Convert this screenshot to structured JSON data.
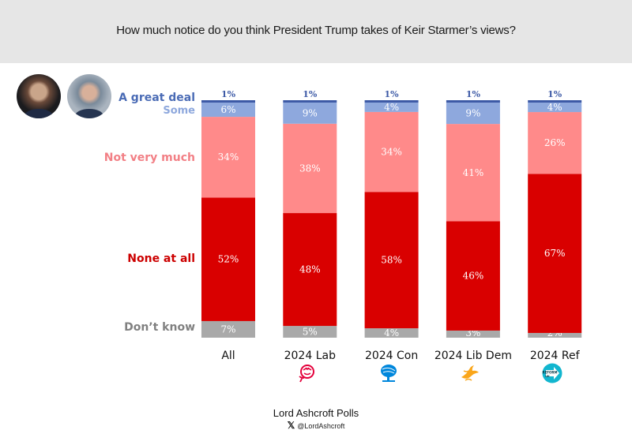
{
  "header": {
    "title": "How much notice do you think President Trump takes of Keir Starmer’s views?"
  },
  "avatars": [
    {
      "name": "Donald Trump photo"
    },
    {
      "name": "Keir Starmer photo"
    }
  ],
  "legend_labels": {
    "great_deal": "A great deal",
    "some": "Some",
    "not_very_much": "Not very much",
    "none_at_all": "None at all",
    "dont_know": "Don’t know"
  },
  "colors": {
    "great_deal": "#3d5aa6",
    "some": "#8ea8dd",
    "not_very_much": "#ff8a8a",
    "none_at_all": "#d90000",
    "dont_know": "#a9a9a9",
    "label_great_deal": "#4a6bb5",
    "label_some": "#8ea8dd",
    "label_not_very_much": "#f27f85",
    "label_none_at_all": "#cc0000",
    "label_dont_know": "#808080"
  },
  "chart_data": {
    "type": "bar",
    "stacked": true,
    "orientation": "vertical",
    "title": "How much notice do you think President Trump takes of Keir Starmer’s views?",
    "categories": [
      "All",
      "2024 Lab",
      "2024 Con",
      "2024 Lib Dem",
      "2024 Ref"
    ],
    "series": [
      {
        "name": "Don’t know",
        "values": [
          7,
          5,
          4,
          3,
          2
        ],
        "labels": [
          "7%",
          "5%",
          "4%",
          "3%",
          "2%"
        ]
      },
      {
        "name": "None at all",
        "values": [
          52,
          48,
          58,
          46,
          67
        ],
        "labels": [
          "52%",
          "48%",
          "58%",
          "46%",
          "67%"
        ]
      },
      {
        "name": "Not very much",
        "values": [
          34,
          38,
          34,
          41,
          26
        ],
        "labels": [
          "34%",
          "38%",
          "34%",
          "41%",
          "26%"
        ]
      },
      {
        "name": "Some",
        "values": [
          6,
          9,
          4,
          9,
          4
        ],
        "labels": [
          "6%",
          "9%",
          "4%",
          "9%",
          "4%"
        ]
      },
      {
        "name": "A great deal",
        "values": [
          1,
          1,
          1,
          1,
          1
        ],
        "labels": [
          "1%",
          "1%",
          "1%",
          "1%",
          "1%"
        ]
      }
    ],
    "xlabel": "",
    "ylabel": "",
    "ylim": [
      0,
      100
    ],
    "grid": false,
    "legend": "left"
  },
  "party_icons": [
    {
      "category": "2024 Lab",
      "icon": "labour-rose-icon",
      "color": "#e4003b"
    },
    {
      "category": "2024 Con",
      "icon": "conservative-tree-icon",
      "color": "#0087dc"
    },
    {
      "category": "2024 Lib Dem",
      "icon": "libdem-bird-icon",
      "color": "#faa61a"
    },
    {
      "category": "2024 Ref",
      "icon": "reform-uk-arrow-icon",
      "color": "#12b6cf",
      "text": "REFORM UK"
    }
  ],
  "footer": {
    "source": "Lord Ashcroft Polls",
    "handle": "@LordAshcroft",
    "handle_icon": "x-logo-icon",
    "x_glyph": "𝕏"
  }
}
